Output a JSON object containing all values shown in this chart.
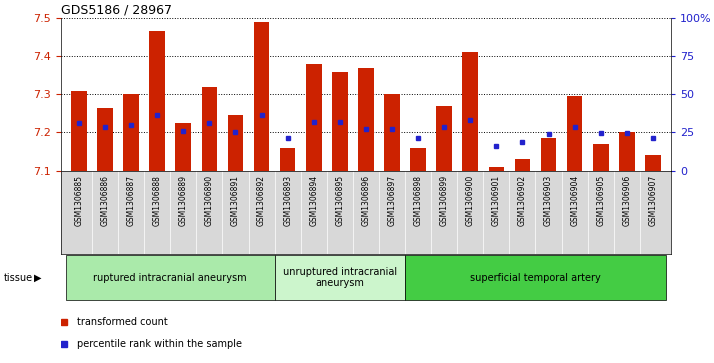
{
  "title": "GDS5186 / 28967",
  "samples": [
    "GSM1306885",
    "GSM1306886",
    "GSM1306887",
    "GSM1306888",
    "GSM1306889",
    "GSM1306890",
    "GSM1306891",
    "GSM1306892",
    "GSM1306893",
    "GSM1306894",
    "GSM1306895",
    "GSM1306896",
    "GSM1306897",
    "GSM1306898",
    "GSM1306899",
    "GSM1306900",
    "GSM1306901",
    "GSM1306902",
    "GSM1306903",
    "GSM1306904",
    "GSM1306905",
    "GSM1306906",
    "GSM1306907"
  ],
  "red_values": [
    7.31,
    7.265,
    7.3,
    7.465,
    7.225,
    7.32,
    7.245,
    7.49,
    7.16,
    7.38,
    7.36,
    7.37,
    7.3,
    7.16,
    7.27,
    7.41,
    7.11,
    7.13,
    7.185,
    7.295,
    7.17,
    7.2,
    7.14
  ],
  "blue_values": [
    7.225,
    7.215,
    7.22,
    7.245,
    7.205,
    7.225,
    7.2,
    7.245,
    7.185,
    7.228,
    7.228,
    7.21,
    7.208,
    7.185,
    7.215,
    7.232,
    7.165,
    7.175,
    7.195,
    7.215,
    7.198,
    7.198,
    7.185
  ],
  "groups": [
    {
      "label": "ruptured intracranial aneurysm",
      "start": 0,
      "end": 8,
      "color": "#aaeaaa"
    },
    {
      "label": "unruptured intracranial\naneurysm",
      "start": 8,
      "end": 13,
      "color": "#ccf5cc"
    },
    {
      "label": "superficial temporal artery",
      "start": 13,
      "end": 23,
      "color": "#44cc44"
    }
  ],
  "ylim": [
    7.1,
    7.5
  ],
  "yticks": [
    7.1,
    7.2,
    7.3,
    7.4,
    7.5
  ],
  "right_yticks": [
    0,
    25,
    50,
    75,
    100
  ],
  "right_yticklabels": [
    "0",
    "25",
    "50",
    "75",
    "100%"
  ],
  "bar_color": "#CC2200",
  "blue_color": "#2222CC",
  "xtick_bg": "#D8D8D8"
}
